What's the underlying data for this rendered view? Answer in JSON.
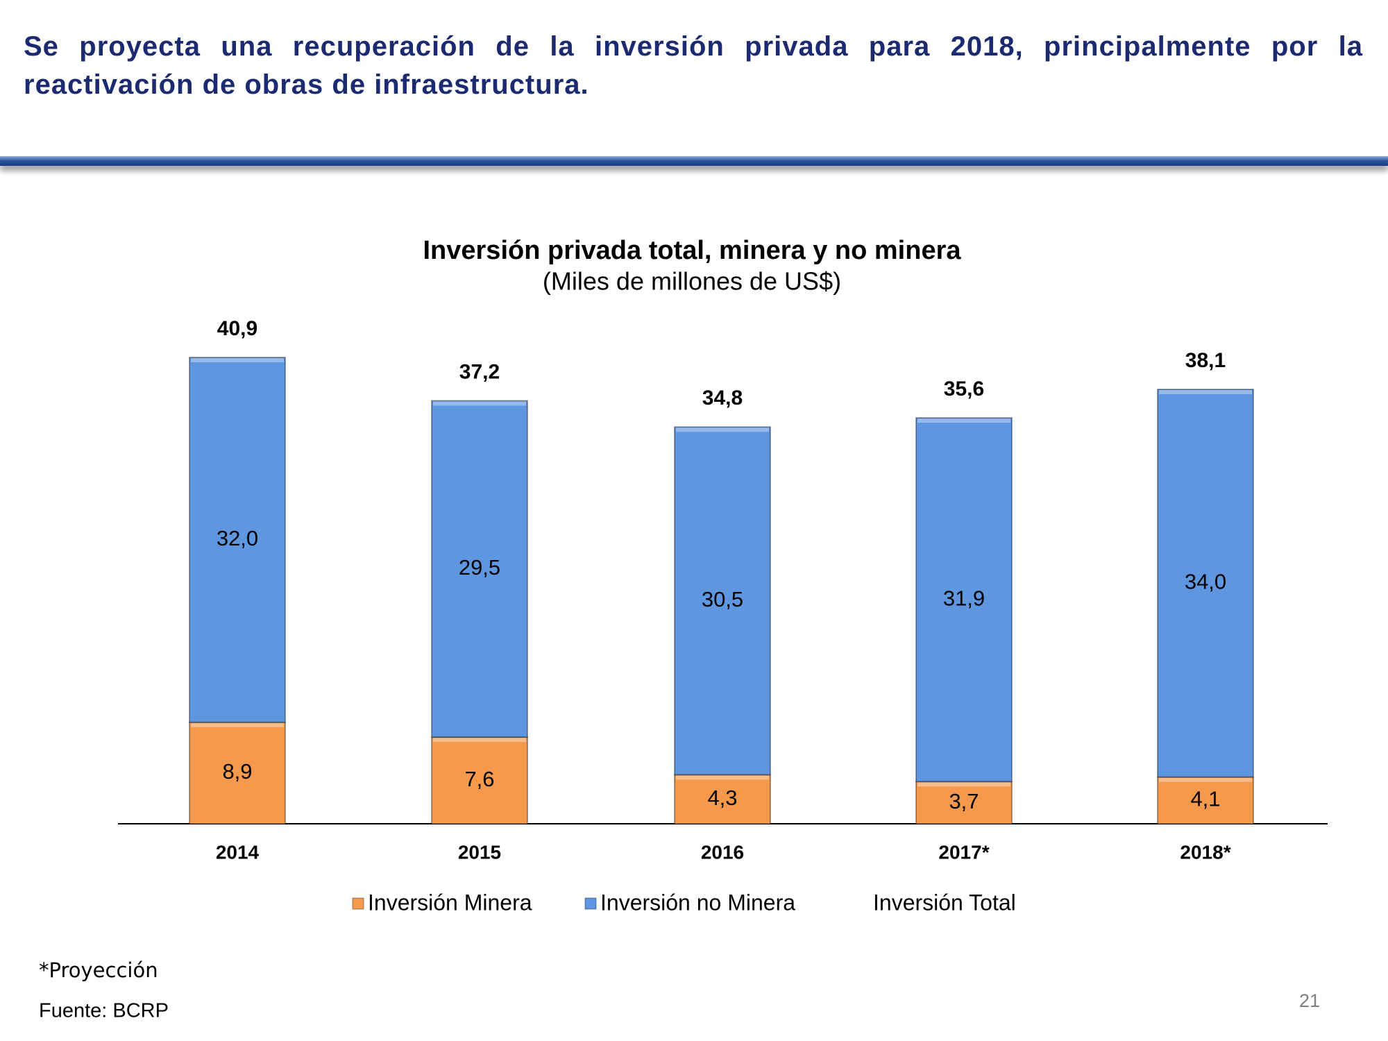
{
  "header": {
    "title": "Se proyecta una recuperación de la inversión privada para 2018, principalmente por la reactivación de obras de infraestructura."
  },
  "chart_data": {
    "type": "stacked-bar",
    "title": "Inversión privada total, minera y no minera",
    "subtitle": "(Miles de millones de US$)",
    "categories": [
      "2014",
      "2015",
      "2016",
      "2017*",
      "2018*"
    ],
    "series": [
      {
        "name": "Inversión Minera",
        "color": "#f59a4c",
        "values": [
          8.9,
          7.6,
          4.3,
          3.7,
          4.1
        ],
        "value_labels": [
          "8,9",
          "7,6",
          "4,3",
          "3,7",
          "4,1"
        ]
      },
      {
        "name": "Inversión no Minera",
        "color": "#5f96e0",
        "values": [
          32.0,
          29.5,
          30.5,
          31.9,
          34.0
        ],
        "value_labels": [
          "32,0",
          "29,5",
          "30,5",
          "31,9",
          "34,0"
        ]
      },
      {
        "name": "Inversión Total",
        "values": [
          40.9,
          37.2,
          34.8,
          35.6,
          38.1
        ],
        "value_labels": [
          "40,9",
          "37,2",
          "34,8",
          "35,6",
          "38,1"
        ]
      }
    ]
  },
  "footer": {
    "note": "*Proyección",
    "source": "Fuente: BCRP",
    "page": "21"
  }
}
